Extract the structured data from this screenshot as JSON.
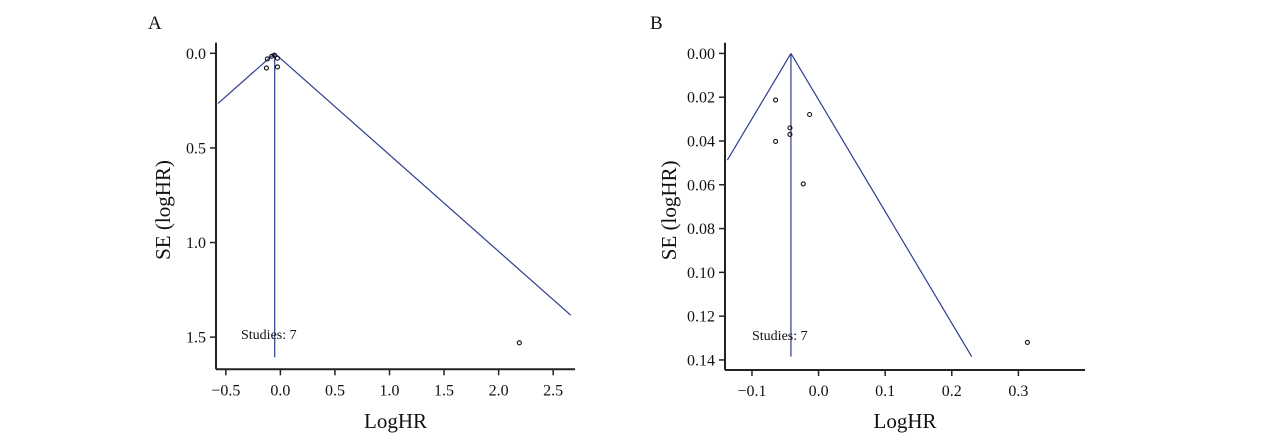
{
  "chart_data": [
    {
      "type": "scatter",
      "panel_label": "A",
      "title": "",
      "xlabel": "LogHR",
      "ylabel": "SE (logHR)",
      "y_inverted": true,
      "xlim": [
        -0.59,
        2.7
      ],
      "ylim": [
        -0.056,
        1.67
      ],
      "x_ticks": [
        -0.5,
        0.0,
        0.5,
        1.0,
        1.5,
        2.0,
        2.5
      ],
      "x_tick_labels": [
        "−0.5",
        "0.0",
        "0.5",
        "1.0",
        "1.5",
        "2.0",
        "2.5"
      ],
      "y_ticks": [
        0.0,
        0.5,
        1.0,
        1.5
      ],
      "y_tick_labels": [
        "0.0",
        "0.5",
        "1.0",
        "1.5"
      ],
      "grid": false,
      "annotation": "Studies: 7",
      "pooled_estimate": -0.052,
      "funnel_max_se": 1.607,
      "funnel_left_se": 0.265,
      "funnel_right_se": 1.384,
      "points": [
        {
          "x": -0.119,
          "y": 0.03
        },
        {
          "x": -0.08,
          "y": 0.016
        },
        {
          "x": -0.055,
          "y": 0.01
        },
        {
          "x": -0.027,
          "y": 0.026
        },
        {
          "x": -0.128,
          "y": 0.078
        },
        {
          "x": -0.027,
          "y": 0.072
        },
        {
          "x": 2.19,
          "y": 1.53
        }
      ],
      "line_color": "#2e3d8f",
      "point_color": "#111111"
    },
    {
      "type": "scatter",
      "panel_label": "B",
      "title": "",
      "xlabel": "LogHR",
      "ylabel": "SE (logHR)",
      "y_inverted": true,
      "xlim": [
        -0.1405,
        0.4
      ],
      "ylim": [
        -0.0049,
        0.1446
      ],
      "x_ticks": [
        -0.1,
        0.0,
        0.1,
        0.2,
        0.3
      ],
      "x_tick_labels": [
        "−0.1",
        "0.0",
        "0.1",
        "0.2",
        "0.3"
      ],
      "y_ticks": [
        0.0,
        0.02,
        0.04,
        0.06,
        0.08,
        0.1,
        0.12,
        0.14
      ],
      "y_tick_labels": [
        "0.00",
        "0.02",
        "0.04",
        "0.06",
        "0.08",
        "0.10",
        "0.12",
        "0.14"
      ],
      "grid": false,
      "annotation": "Studies: 7",
      "pooled_estimate": -0.0415,
      "funnel_max_se": 0.1385,
      "funnel_left_se": 0.0487,
      "funnel_right_se": 0.1385,
      "points": [
        {
          "x": -0.0645,
          "y": 0.0213
        },
        {
          "x": -0.0135,
          "y": 0.0279
        },
        {
          "x": -0.043,
          "y": 0.034
        },
        {
          "x": -0.043,
          "y": 0.037
        },
        {
          "x": -0.0645,
          "y": 0.0402
        },
        {
          "x": -0.023,
          "y": 0.0596
        },
        {
          "x": 0.3135,
          "y": 0.132
        }
      ],
      "line_color": "#2e3d8f",
      "point_color": "#111111"
    }
  ]
}
